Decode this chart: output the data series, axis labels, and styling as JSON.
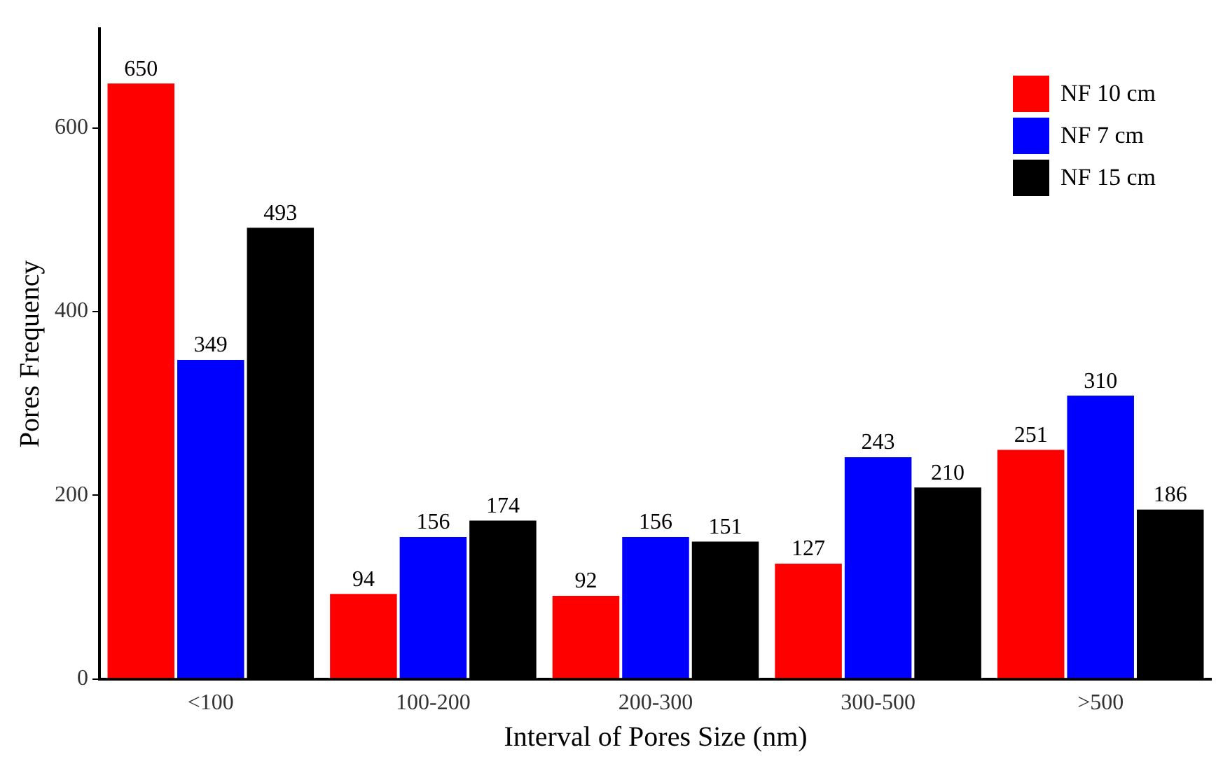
{
  "chart_data": {
    "type": "bar",
    "xlabel": "Interval of Pores Size (nm)",
    "ylabel": "Pores Frequency",
    "categories": [
      "<100",
      "100-200",
      "200-300",
      "300-500",
      ">500"
    ],
    "series": [
      {
        "name": "NF 10 cm",
        "color": "#ff0000",
        "values": [
          650,
          94,
          92,
          127,
          251
        ]
      },
      {
        "name": "NF 7 cm",
        "color": "#0000ff",
        "values": [
          349,
          156,
          156,
          243,
          310
        ]
      },
      {
        "name": "NF 15 cm",
        "color": "#000000",
        "values": [
          493,
          174,
          151,
          210,
          186
        ]
      }
    ],
    "ylim": [
      0,
      708
    ],
    "yticks": [
      0,
      200,
      400,
      600
    ],
    "grid": false,
    "legend": "top right",
    "data_labels": true
  }
}
